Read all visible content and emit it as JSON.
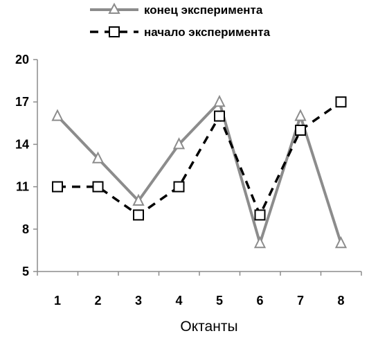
{
  "chart_data": {
    "type": "line",
    "x": [
      "1",
      "2",
      "3",
      "4",
      "5",
      "6",
      "7",
      "8"
    ],
    "xlabel": "Октанты",
    "ylabel": "",
    "ylim": [
      5,
      20
    ],
    "yticks": [
      5,
      8,
      11,
      14,
      17,
      20
    ],
    "grid": false,
    "legend_position": "top",
    "series": [
      {
        "name": "конец эксперимента",
        "values": [
          16,
          13,
          10,
          14,
          17,
          7,
          16,
          7
        ],
        "color": "#8c8c8c",
        "line_style": "solid",
        "marker": "triangle-icon"
      },
      {
        "name": "начало эксперимента",
        "values": [
          11,
          11,
          9,
          11,
          16,
          9,
          15,
          17
        ],
        "color": "#000000",
        "line_style": "dashed",
        "marker": "square-icon"
      }
    ]
  }
}
